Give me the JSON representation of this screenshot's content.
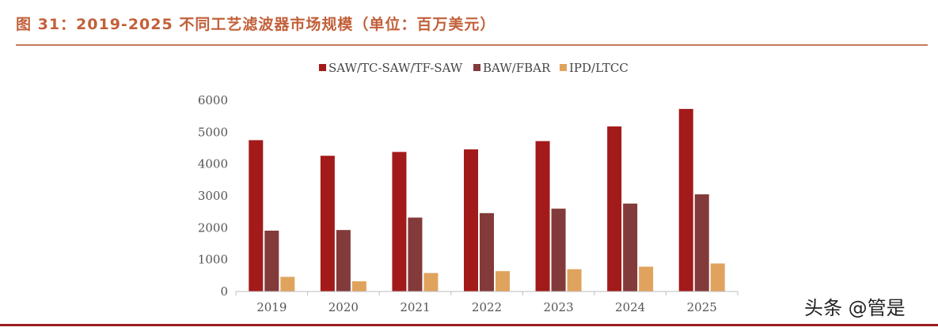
{
  "header": {
    "title": "图 31：2019-2025 不同工艺滤波器市场规模（单位：百万美元）"
  },
  "watermark": "头条 @管是",
  "chart_data": {
    "type": "bar",
    "title": "图 31：2019-2025 不同工艺滤波器市场规模（单位：百万美元）",
    "xlabel": "",
    "ylabel": "",
    "categories": [
      "2019",
      "2020",
      "2021",
      "2022",
      "2023",
      "2024",
      "2025"
    ],
    "ylim": [
      0,
      6000
    ],
    "yticks": [
      0,
      1000,
      2000,
      3000,
      4000,
      5000,
      6000
    ],
    "legend_position": "top-center",
    "grid": false,
    "series": [
      {
        "name": "SAW/TC-SAW/TF-SAW",
        "color": "#a31a1a",
        "values": [
          4750,
          4260,
          4380,
          4460,
          4720,
          5180,
          5730
        ]
      },
      {
        "name": "BAW/FBAR",
        "color": "#833a3a",
        "values": [
          1910,
          1930,
          2320,
          2460,
          2600,
          2760,
          3050
        ]
      },
      {
        "name": "IPD/LTCC",
        "color": "#e0a35e",
        "values": [
          460,
          320,
          580,
          640,
          700,
          780,
          880
        ]
      }
    ]
  }
}
